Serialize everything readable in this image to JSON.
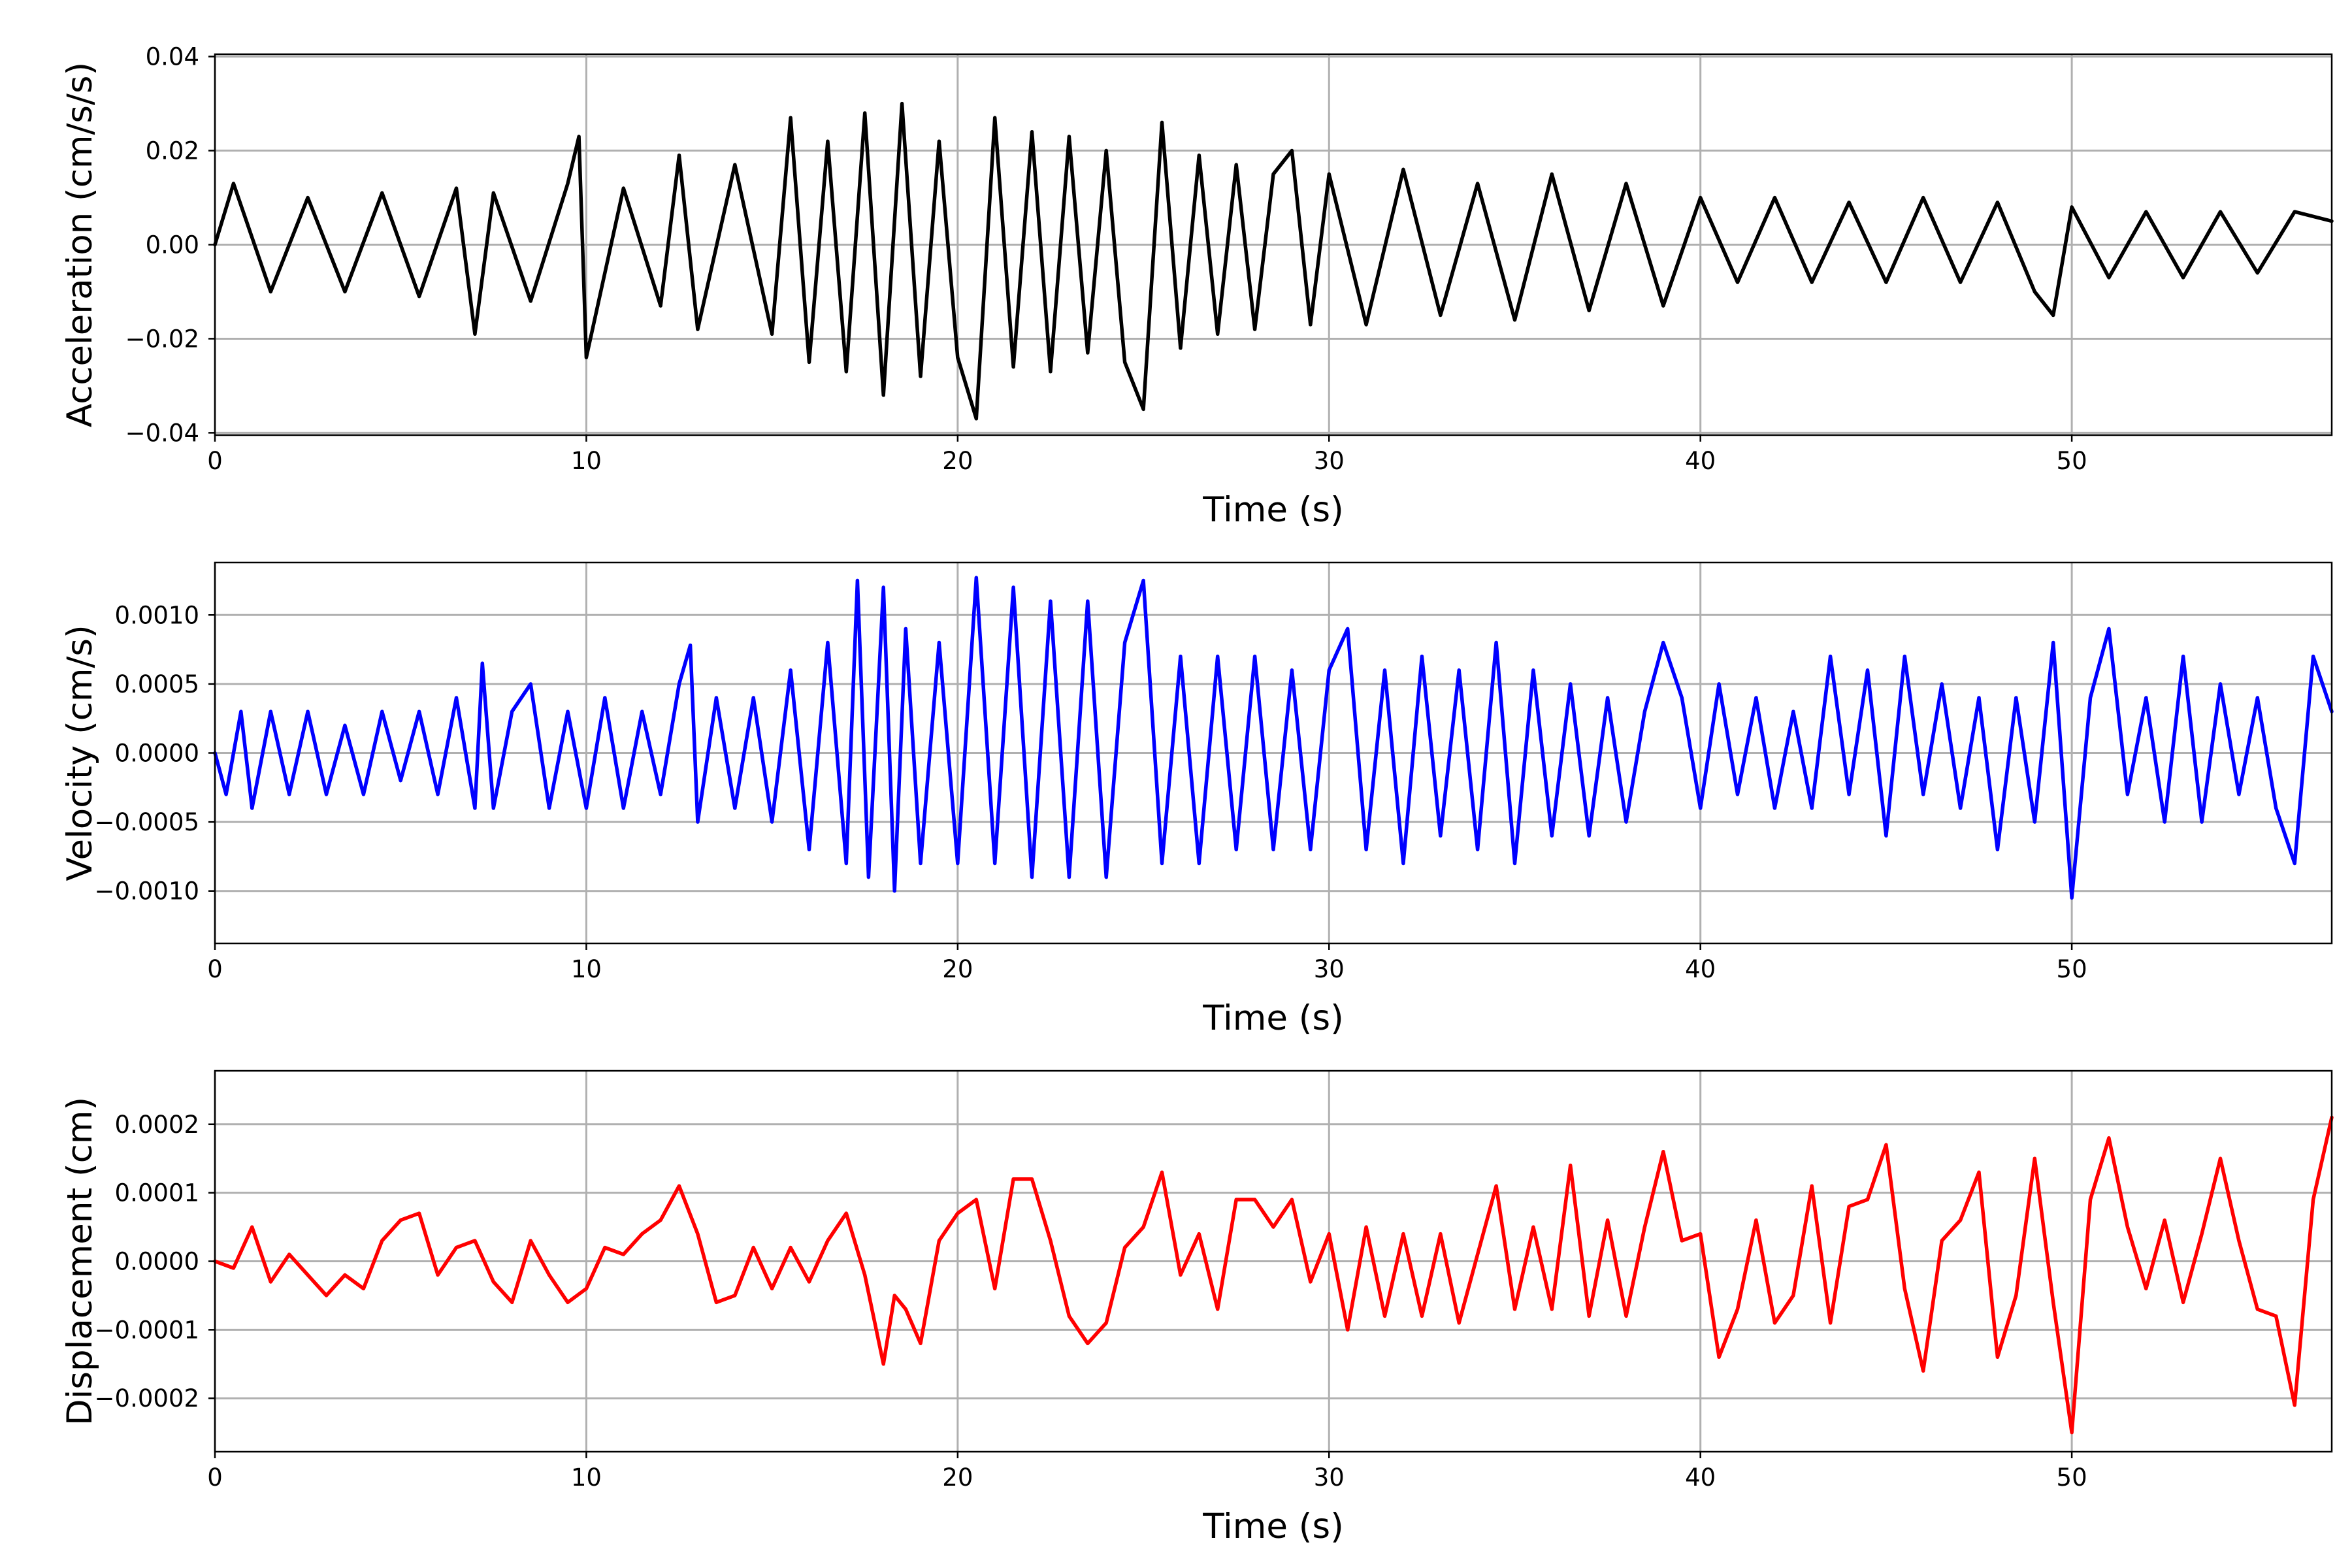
{
  "chart_data": [
    {
      "type": "line",
      "xlabel": "Time (s)",
      "ylabel": "Acceleration (cm/s/s)",
      "xlim": [
        0,
        57
      ],
      "ylim": [
        -0.0405,
        0.0405
      ],
      "xticks": [
        0,
        10,
        20,
        30,
        40,
        50
      ],
      "xtick_labels": [
        "0",
        "10",
        "20",
        "30",
        "40",
        "50"
      ],
      "yticks": [
        -0.04,
        -0.02,
        0.0,
        0.02,
        0.04
      ],
      "ytick_labels": [
        "−0.04",
        "−0.02",
        "0.00",
        "0.02",
        "0.04"
      ],
      "grid": true,
      "color": "#000000",
      "series": [
        {
          "x": [
            0,
            0.5,
            1.5,
            2.5,
            3.5,
            4.5,
            5.5,
            6.5,
            7.0,
            7.5,
            8.5,
            9.5,
            9.8,
            10.0,
            11.0,
            12.0,
            12.5,
            13.0,
            14.0,
            15.0,
            15.5,
            16.0,
            16.5,
            17.0,
            17.5,
            18.0,
            18.5,
            19.0,
            19.5,
            20.0,
            20.5,
            21.0,
            21.5,
            22.0,
            22.5,
            23.0,
            23.5,
            24.0,
            24.5,
            25.0,
            25.5,
            26.0,
            26.5,
            27.0,
            27.5,
            28.0,
            28.5,
            29.0,
            29.5,
            30.0,
            31.0,
            32.0,
            33.0,
            34.0,
            35.0,
            36.0,
            37.0,
            38.0,
            39.0,
            40.0,
            41.0,
            42.0,
            43.0,
            44.0,
            45.0,
            46.0,
            47.0,
            48.0,
            49.0,
            49.5,
            50.0,
            51.0,
            52.0,
            53.0,
            54.0,
            55.0,
            56.0,
            57.0
          ],
          "y": [
            0.0,
            0.013,
            -0.01,
            0.01,
            -0.01,
            0.011,
            -0.011,
            0.012,
            -0.019,
            0.011,
            -0.012,
            0.013,
            0.023,
            -0.024,
            0.012,
            -0.013,
            0.019,
            -0.018,
            0.017,
            -0.019,
            0.027,
            -0.025,
            0.022,
            -0.027,
            0.028,
            -0.032,
            0.03,
            -0.028,
            0.022,
            -0.024,
            -0.037,
            0.027,
            -0.026,
            0.024,
            -0.027,
            0.023,
            -0.023,
            0.02,
            -0.025,
            -0.035,
            0.026,
            -0.022,
            0.019,
            -0.019,
            0.017,
            -0.018,
            0.015,
            0.02,
            -0.017,
            0.015,
            -0.017,
            0.016,
            -0.015,
            0.013,
            -0.016,
            0.015,
            -0.014,
            0.013,
            -0.013,
            0.01,
            -0.008,
            0.01,
            -0.008,
            0.009,
            -0.008,
            0.01,
            -0.008,
            0.009,
            -0.01,
            -0.015,
            0.008,
            -0.007,
            0.007,
            -0.007,
            0.007,
            -0.006,
            0.007,
            0.005
          ]
        }
      ]
    },
    {
      "type": "line",
      "xlabel": "Time (s)",
      "ylabel": "Velocity (cm/s)",
      "xlim": [
        0,
        57
      ],
      "ylim": [
        -0.00138,
        0.00138
      ],
      "xticks": [
        0,
        10,
        20,
        30,
        40,
        50
      ],
      "xtick_labels": [
        "0",
        "10",
        "20",
        "30",
        "40",
        "50"
      ],
      "yticks": [
        -0.001,
        -0.0005,
        0.0,
        0.0005,
        0.001
      ],
      "ytick_labels": [
        "−0.0010",
        "−0.0005",
        "0.0000",
        "0.0005",
        "0.0010"
      ],
      "grid": true,
      "color": "#0000ff",
      "series": [
        {
          "x": [
            0,
            0.3,
            0.7,
            1.0,
            1.5,
            2.0,
            2.5,
            3.0,
            3.5,
            4.0,
            4.5,
            5.0,
            5.5,
            6.0,
            6.5,
            7.0,
            7.2,
            7.5,
            8.0,
            8.5,
            9.0,
            9.5,
            10.0,
            10.5,
            11.0,
            11.5,
            12.0,
            12.5,
            12.8,
            13.0,
            13.5,
            14.0,
            14.5,
            15.0,
            15.5,
            16.0,
            16.5,
            17.0,
            17.3,
            17.6,
            18.0,
            18.3,
            18.6,
            19.0,
            19.5,
            20.0,
            20.5,
            21.0,
            21.5,
            22.0,
            22.5,
            23.0,
            23.5,
            24.0,
            24.5,
            25.0,
            25.5,
            26.0,
            26.5,
            27.0,
            27.5,
            28.0,
            28.5,
            29.0,
            29.5,
            30.0,
            30.5,
            31.0,
            31.5,
            32.0,
            32.5,
            33.0,
            33.5,
            34.0,
            34.5,
            35.0,
            35.5,
            36.0,
            36.5,
            37.0,
            37.5,
            38.0,
            38.5,
            39.0,
            39.5,
            40.0,
            40.5,
            41.0,
            41.5,
            42.0,
            42.5,
            43.0,
            43.5,
            44.0,
            44.5,
            45.0,
            45.5,
            46.0,
            46.5,
            47.0,
            47.5,
            48.0,
            48.5,
            49.0,
            49.5,
            50.0,
            50.5,
            51.0,
            51.5,
            52.0,
            52.5,
            53.0,
            53.5,
            54.0,
            54.5,
            55.0,
            55.5,
            56.0,
            56.5,
            57.0
          ],
          "y": [
            0.0,
            -0.0003,
            0.0003,
            -0.0004,
            0.0003,
            -0.0003,
            0.0003,
            -0.0003,
            0.0002,
            -0.0003,
            0.0003,
            -0.0002,
            0.0003,
            -0.0003,
            0.0004,
            -0.0004,
            0.00065,
            -0.0004,
            0.0003,
            0.0005,
            -0.0004,
            0.0003,
            -0.0004,
            0.0004,
            -0.0004,
            0.0003,
            -0.0003,
            0.0005,
            0.00078,
            -0.0005,
            0.0004,
            -0.0004,
            0.0004,
            -0.0005,
            0.0006,
            -0.0007,
            0.0008,
            -0.0008,
            0.00125,
            -0.0009,
            0.0012,
            -0.001,
            0.0009,
            -0.0008,
            0.0008,
            -0.0008,
            0.00127,
            -0.0008,
            0.0012,
            -0.0009,
            0.0011,
            -0.0009,
            0.0011,
            -0.0009,
            0.0008,
            0.00125,
            -0.0008,
            0.0007,
            -0.0008,
            0.0007,
            -0.0007,
            0.0007,
            -0.0007,
            0.0006,
            -0.0007,
            0.0006,
            0.0009,
            -0.0007,
            0.0006,
            -0.0008,
            0.0007,
            -0.0006,
            0.0006,
            -0.0007,
            0.0008,
            -0.0008,
            0.0006,
            -0.0006,
            0.0005,
            -0.0006,
            0.0004,
            -0.0005,
            0.0003,
            0.0008,
            0.0004,
            -0.0004,
            0.0005,
            -0.0003,
            0.0004,
            -0.0004,
            0.0003,
            -0.0004,
            0.0007,
            -0.0003,
            0.0006,
            -0.0006,
            0.0007,
            -0.0003,
            0.0005,
            -0.0004,
            0.0004,
            -0.0007,
            0.0004,
            -0.0005,
            0.0008,
            -0.00105,
            0.0004,
            0.0009,
            -0.0003,
            0.0004,
            -0.0005,
            0.0007,
            -0.0005,
            0.0005,
            -0.0003,
            0.0004,
            -0.0004,
            -0.0008,
            0.0007,
            0.0003
          ]
        }
      ]
    },
    {
      "type": "line",
      "xlabel": "Time (s)",
      "ylabel": "Displacement (cm)",
      "xlim": [
        0,
        57
      ],
      "ylim": [
        -0.000278,
        0.000278
      ],
      "xticks": [
        0,
        10,
        20,
        30,
        40,
        50
      ],
      "xtick_labels": [
        "0",
        "10",
        "20",
        "30",
        "40",
        "50"
      ],
      "yticks": [
        -0.0002,
        -0.0001,
        0.0,
        0.0001,
        0.0002
      ],
      "ytick_labels": [
        "−0.0002",
        "−0.0001",
        "0.0000",
        "0.0001",
        "0.0002"
      ],
      "grid": true,
      "color": "#ff0000",
      "series": [
        {
          "x": [
            0,
            0.5,
            1.0,
            1.5,
            2.0,
            2.5,
            3.0,
            3.5,
            4.0,
            4.5,
            5.0,
            5.5,
            6.0,
            6.5,
            7.0,
            7.5,
            8.0,
            8.5,
            9.0,
            9.5,
            10.0,
            10.5,
            11.0,
            11.5,
            12.0,
            12.5,
            13.0,
            13.5,
            14.0,
            14.5,
            15.0,
            15.5,
            16.0,
            16.5,
            17.0,
            17.5,
            18.0,
            18.3,
            18.6,
            19.0,
            19.5,
            20.0,
            20.5,
            21.0,
            21.5,
            22.0,
            22.5,
            23.0,
            23.5,
            24.0,
            24.5,
            25.0,
            25.5,
            26.0,
            26.5,
            27.0,
            27.5,
            28.0,
            28.5,
            29.0,
            29.5,
            30.0,
            30.5,
            31.0,
            31.5,
            32.0,
            32.5,
            33.0,
            33.5,
            34.0,
            34.5,
            35.0,
            35.5,
            36.0,
            36.5,
            37.0,
            37.5,
            38.0,
            38.5,
            39.0,
            39.5,
            40.0,
            40.5,
            41.0,
            41.5,
            42.0,
            42.5,
            43.0,
            43.5,
            44.0,
            44.5,
            45.0,
            45.5,
            46.0,
            46.5,
            47.0,
            47.5,
            48.0,
            48.5,
            49.0,
            49.5,
            50.0,
            50.5,
            51.0,
            51.5,
            52.0,
            52.5,
            53.0,
            53.5,
            54.0,
            54.5,
            55.0,
            55.5,
            56.0,
            56.5,
            57.0
          ],
          "y": [
            0.0,
            -1e-05,
            5e-05,
            -3e-05,
            1e-05,
            -2e-05,
            -5e-05,
            -2e-05,
            -4e-05,
            3e-05,
            6e-05,
            7e-05,
            -2e-05,
            2e-05,
            3e-05,
            -3e-05,
            -6e-05,
            3e-05,
            -2e-05,
            -6e-05,
            -4e-05,
            2e-05,
            1e-05,
            4e-05,
            6e-05,
            0.00011,
            4e-05,
            -6e-05,
            -5e-05,
            2e-05,
            -4e-05,
            2e-05,
            -3e-05,
            3e-05,
            7e-05,
            -2e-05,
            -0.00015,
            -5e-05,
            -7e-05,
            -0.00012,
            3e-05,
            7e-05,
            9e-05,
            -4e-05,
            0.00012,
            0.00012,
            3e-05,
            -8e-05,
            -0.00012,
            -9e-05,
            2e-05,
            5e-05,
            0.00013,
            -2e-05,
            4e-05,
            -7e-05,
            9e-05,
            9e-05,
            5e-05,
            9e-05,
            -3e-05,
            4e-05,
            -0.0001,
            5e-05,
            -8e-05,
            4e-05,
            -8e-05,
            4e-05,
            -9e-05,
            1e-05,
            0.00011,
            -7e-05,
            5e-05,
            -7e-05,
            0.00014,
            -8e-05,
            6e-05,
            -8e-05,
            5e-05,
            0.00016,
            3e-05,
            4e-05,
            -0.00014,
            -7e-05,
            6e-05,
            -9e-05,
            -5e-05,
            0.00011,
            -9e-05,
            8e-05,
            9e-05,
            0.00017,
            -4e-05,
            -0.00016,
            3e-05,
            6e-05,
            0.00013,
            -0.00014,
            -5e-05,
            0.00015,
            -6e-05,
            -0.00025,
            9e-05,
            0.00018,
            5e-05,
            -4e-05,
            6e-05,
            -6e-05,
            4e-05,
            0.00015,
            3e-05,
            -7e-05,
            -8e-05,
            -0.00021,
            9e-05,
            0.00021
          ]
        }
      ]
    }
  ]
}
